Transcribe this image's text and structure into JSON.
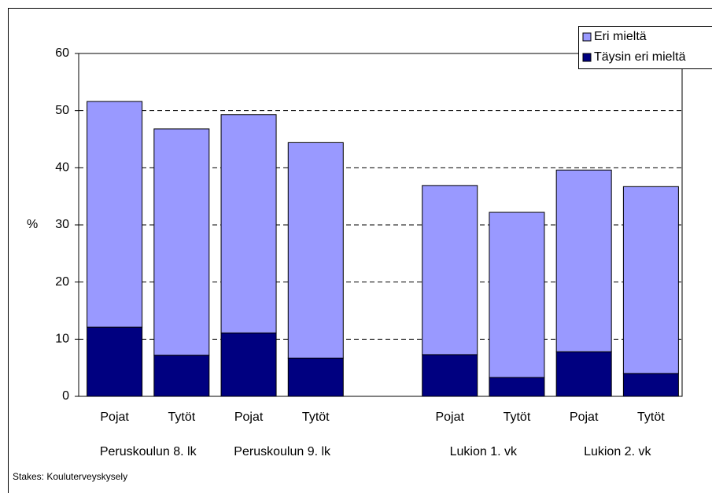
{
  "chart_data": {
    "type": "stacked_bar",
    "categories": [
      "Pojat",
      "Tytöt",
      "Pojat",
      "Tytöt",
      null,
      "Pojat",
      "Tytöt",
      "Pojat",
      "Tytöt"
    ],
    "groups": [
      "Peruskoulun 8. lk",
      "Peruskoulun 9. lk",
      "Lukion 1. vk",
      "Lukion 2. vk"
    ],
    "series": [
      {
        "name": "Täysin eri mieltä",
        "color": "#000080",
        "values": [
          12.1,
          7.2,
          11.1,
          6.7,
          null,
          7.3,
          3.3,
          7.8,
          4.0
        ]
      },
      {
        "name": "Eri mieltä",
        "color": "#9999ff",
        "values": [
          39.5,
          39.6,
          38.2,
          37.7,
          null,
          29.6,
          28.9,
          31.8,
          32.7
        ]
      }
    ],
    "y_label": "%",
    "ylim": [
      0,
      60
    ],
    "yticks": [
      0,
      10,
      20,
      30,
      40,
      50,
      60
    ],
    "grid": true,
    "legend": "top-right",
    "source": "Stakes: Kouluterveyskysely"
  }
}
